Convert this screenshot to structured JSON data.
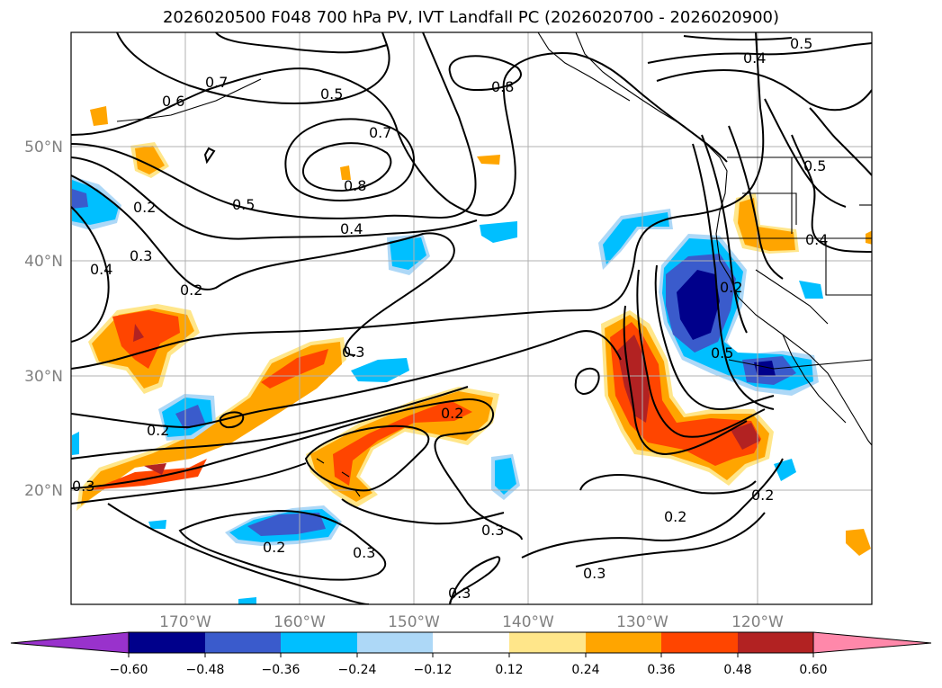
{
  "title": "2026020500 F048 700 hPa PV, IVT Landfall PC (2026020700 - 2026020900)",
  "map": {
    "lat_labels": [
      "50°N",
      "40°N",
      "30°N",
      "20°N"
    ],
    "lon_labels": [
      "170°W",
      "160°W",
      "150°W",
      "140°W",
      "130°W",
      "120°W"
    ],
    "pv_contour_labels": [
      "0.7",
      "0.6",
      "0.5",
      "0.7",
      "0.8",
      "0.8",
      "0.5",
      "0.4",
      "0.5",
      "0.4",
      "0.2",
      "0.4",
      "0.3",
      "0.2",
      "0.3",
      "0.2",
      "0.2",
      "0.3",
      "0.2",
      "0.3",
      "0.3",
      "0.3",
      "0.2",
      "0.2",
      "0.5",
      "0.2",
      "0.4",
      "0.5",
      "0.3"
    ]
  },
  "colorbar": {
    "ticks": [
      "−0.60",
      "−0.48",
      "−0.36",
      "−0.24",
      "−0.12",
      "0.12",
      "0.24",
      "0.36",
      "0.48",
      "0.60"
    ],
    "colors": [
      "#9932cc",
      "#00008b",
      "#3a5bcc",
      "#00bfff",
      "#add8f7",
      "#ffffff",
      "#ffe68a",
      "#ffa500",
      "#ff4500",
      "#b22222",
      "#ff88aa"
    ]
  }
}
